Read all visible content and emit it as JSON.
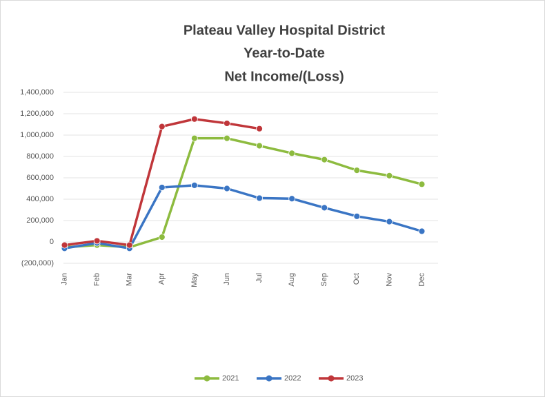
{
  "chart_data": {
    "type": "line",
    "title": [
      "Plateau Valley Hospital District",
      "Year-to-Date",
      "Net Income/(Loss)"
    ],
    "categories": [
      "Jan",
      "Feb",
      "Mar",
      "Apr",
      "May",
      "Jun",
      "Jul",
      "Aug",
      "Sep",
      "Oct",
      "Nov",
      "Dec"
    ],
    "series": [
      {
        "name": "2021",
        "color": "#8dbb3f",
        "values": [
          -50000,
          -30000,
          -50000,
          45000,
          970000,
          970000,
          900000,
          830000,
          770000,
          670000,
          620000,
          540000
        ]
      },
      {
        "name": "2022",
        "color": "#3a75c4",
        "values": [
          -60000,
          -10000,
          -60000,
          510000,
          530000,
          500000,
          410000,
          405000,
          320000,
          240000,
          190000,
          100000
        ]
      },
      {
        "name": "2023",
        "color": "#c0363a",
        "values": [
          -30000,
          10000,
          -30000,
          1080000,
          1150000,
          1110000,
          1060000,
          null,
          null,
          null,
          null,
          null
        ]
      }
    ],
    "ylim": [
      -200000,
      1400000
    ],
    "yticks": [
      {
        "value": -200000,
        "label": "(200,000)"
      },
      0,
      {
        "value": 200000,
        "label": "200,000"
      },
      {
        "value": 400000,
        "label": "400,000"
      },
      {
        "value": 600000,
        "label": "600,000"
      },
      {
        "value": 800000,
        "label": "800,000"
      },
      {
        "value": 1000000,
        "label": "1,000,000"
      },
      {
        "value": 1200000,
        "label": "1,200,000"
      },
      {
        "value": 1400000,
        "label": "1,400,000"
      }
    ],
    "grid": true,
    "legend": "bottom"
  }
}
